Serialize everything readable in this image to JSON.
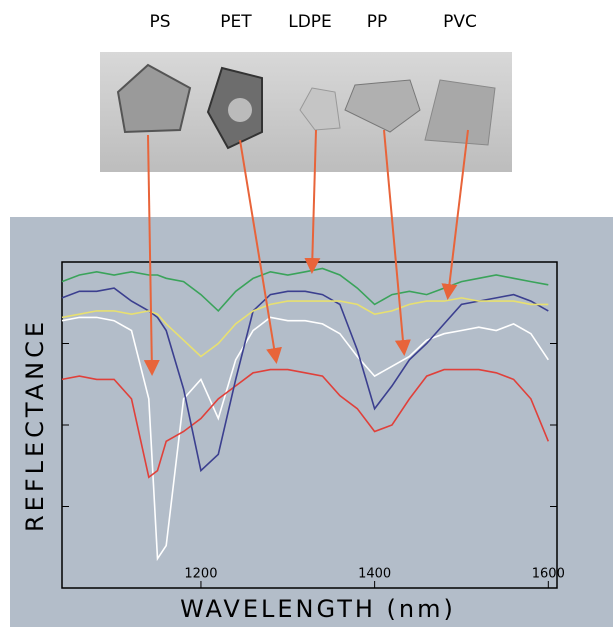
{
  "chart_data": {
    "type": "line",
    "xlabel": "WAVELENGTH (nm)",
    "ylabel": "REFLECTANCE",
    "x": [
      1040,
      1060,
      1080,
      1100,
      1120,
      1140,
      1150,
      1160,
      1180,
      1200,
      1220,
      1240,
      1260,
      1280,
      1300,
      1320,
      1340,
      1360,
      1380,
      1400,
      1420,
      1440,
      1460,
      1480,
      1500,
      1520,
      1540,
      1560,
      1580,
      1600
    ],
    "series": [
      {
        "name": "PS",
        "color": "#ffffff",
        "values": [
          0.82,
          0.83,
          0.83,
          0.82,
          0.79,
          0.58,
          0.09,
          0.13,
          0.58,
          0.64,
          0.52,
          0.7,
          0.79,
          0.83,
          0.82,
          0.82,
          0.81,
          0.78,
          0.71,
          0.65,
          0.68,
          0.71,
          0.76,
          0.78,
          0.79,
          0.8,
          0.79,
          0.81,
          0.78,
          0.7
        ]
      },
      {
        "name": "PET",
        "color": "#e0403a",
        "values": [
          0.64,
          0.65,
          0.64,
          0.64,
          0.58,
          0.34,
          0.36,
          0.45,
          0.48,
          0.52,
          0.58,
          0.62,
          0.66,
          0.67,
          0.67,
          0.66,
          0.65,
          0.59,
          0.55,
          0.48,
          0.5,
          0.58,
          0.65,
          0.67,
          0.67,
          0.67,
          0.66,
          0.64,
          0.58,
          0.45
        ]
      },
      {
        "name": "LDPE",
        "color": "#3aa35a",
        "values": [
          0.94,
          0.96,
          0.97,
          0.96,
          0.97,
          0.96,
          0.96,
          0.95,
          0.94,
          0.9,
          0.85,
          0.91,
          0.95,
          0.97,
          0.96,
          0.97,
          0.98,
          0.96,
          0.92,
          0.87,
          0.9,
          0.91,
          0.9,
          0.92,
          0.94,
          0.95,
          0.96,
          0.95,
          0.94,
          0.93
        ]
      },
      {
        "name": "PP",
        "color": "#3b3f8f",
        "values": [
          0.89,
          0.91,
          0.91,
          0.92,
          0.88,
          0.85,
          0.83,
          0.79,
          0.61,
          0.36,
          0.41,
          0.64,
          0.85,
          0.9,
          0.91,
          0.91,
          0.9,
          0.87,
          0.73,
          0.55,
          0.62,
          0.7,
          0.75,
          0.81,
          0.87,
          0.88,
          0.89,
          0.9,
          0.88,
          0.85
        ]
      },
      {
        "name": "PVC",
        "color": "#e8e070",
        "values": [
          0.83,
          0.84,
          0.85,
          0.85,
          0.84,
          0.85,
          0.84,
          0.81,
          0.76,
          0.71,
          0.75,
          0.81,
          0.85,
          0.87,
          0.88,
          0.88,
          0.88,
          0.88,
          0.87,
          0.84,
          0.85,
          0.87,
          0.88,
          0.88,
          0.89,
          0.88,
          0.88,
          0.88,
          0.87,
          0.87
        ]
      }
    ],
    "xlim": [
      1040,
      1610
    ],
    "xticks": [
      1200,
      1400,
      1600
    ],
    "ylim": [
      0,
      1
    ],
    "yticks": [
      0.25,
      0.5,
      0.75
    ]
  }
}
